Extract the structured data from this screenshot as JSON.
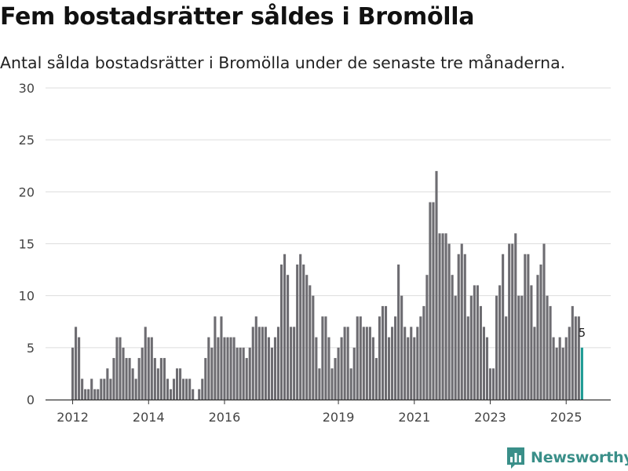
{
  "title": "Fem bostadsrätter såldes i Bromölla",
  "subtitle": "Antal sålda bostadsrätter i Bromölla under de senaste tre månaderna.",
  "brand": {
    "name": "Newsworthy",
    "color": "#3a8f89"
  },
  "colors": {
    "bar": "#6d6c71",
    "highlight": "#1d9a93",
    "grid": "#dddddd",
    "axis": "#333333"
  },
  "chart_data": {
    "type": "bar",
    "title": "Fem bostadsrätter såldes i Bromölla",
    "subtitle": "Antal sålda bostadsrätter i Bromölla under de senaste tre månaderna.",
    "xlabel": "",
    "ylabel": "",
    "ylim": [
      0,
      30
    ],
    "yticks": [
      0,
      5,
      10,
      15,
      20,
      25,
      30
    ],
    "grid": true,
    "start": "2012-01",
    "period": "month",
    "xticks": [
      {
        "label": "2012",
        "index": 0
      },
      {
        "label": "2014",
        "index": 24
      },
      {
        "label": "2016",
        "index": 48
      },
      {
        "label": "2019",
        "index": 84
      },
      {
        "label": "2021",
        "index": 108
      },
      {
        "label": "2023",
        "index": 132
      },
      {
        "label": "2025",
        "index": 156
      }
    ],
    "values": [
      5,
      7,
      6,
      2,
      1,
      1,
      2,
      1,
      1,
      2,
      2,
      3,
      2,
      4,
      6,
      6,
      5,
      4,
      4,
      3,
      2,
      4,
      5,
      7,
      6,
      6,
      4,
      3,
      4,
      4,
      2,
      1,
      2,
      3,
      3,
      2,
      2,
      2,
      1,
      0,
      1,
      2,
      4,
      6,
      5,
      8,
      6,
      8,
      6,
      6,
      6,
      6,
      5,
      5,
      5,
      4,
      5,
      7,
      8,
      7,
      7,
      7,
      6,
      5,
      6,
      7,
      13,
      14,
      12,
      7,
      7,
      13,
      14,
      13,
      12,
      11,
      10,
      6,
      3,
      8,
      8,
      6,
      3,
      4,
      5,
      6,
      7,
      7,
      3,
      5,
      8,
      8,
      7,
      7,
      7,
      6,
      4,
      8,
      9,
      9,
      6,
      7,
      8,
      13,
      10,
      7,
      6,
      7,
      6,
      7,
      8,
      9,
      12,
      19,
      19,
      22,
      16,
      16,
      16,
      15,
      12,
      10,
      14,
      15,
      14,
      8,
      10,
      11,
      11,
      9,
      7,
      6,
      3,
      3,
      10,
      11,
      14,
      8,
      15,
      15,
      16,
      10,
      10,
      14,
      14,
      11,
      7,
      12,
      13,
      15,
      10,
      9,
      6,
      5,
      6,
      5,
      6,
      7,
      9,
      8,
      8,
      5
    ],
    "highlight_last": true,
    "last_label": "5"
  }
}
